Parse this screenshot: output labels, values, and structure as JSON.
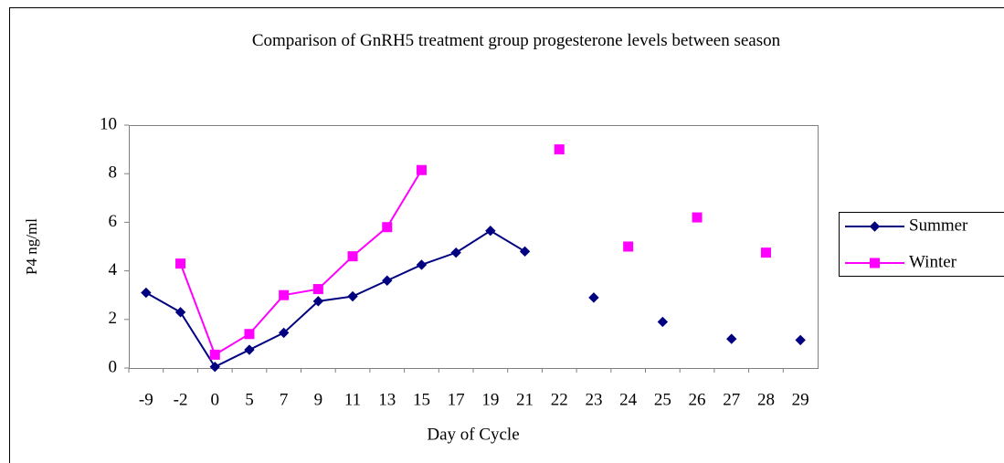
{
  "chart_data": {
    "type": "line",
    "title": "Comparison of GnRH5 treatment group progesterone levels between season",
    "x_label": "Day of Cycle",
    "y_label": "P4 ng/ml",
    "categories": [
      "-9",
      "-2",
      "0",
      "5",
      "7",
      "9",
      "11",
      "13",
      "15",
      "17",
      "19",
      "21",
      "22",
      "23",
      "24",
      "25",
      "26",
      "27",
      "28",
      "29"
    ],
    "series": [
      {
        "name": "Summer",
        "color": "#000080",
        "marker": "diamond",
        "values": [
          3.1,
          2.3,
          0.05,
          0.75,
          1.45,
          2.75,
          2.95,
          3.6,
          4.25,
          4.75,
          5.65,
          4.8,
          null,
          2.9,
          null,
          1.9,
          null,
          1.2,
          null,
          1.15
        ]
      },
      {
        "name": "Winter",
        "color": "#ff00ff",
        "marker": "square",
        "values": [
          null,
          4.3,
          0.55,
          1.4,
          3.0,
          3.25,
          4.6,
          5.8,
          8.15,
          null,
          null,
          null,
          9.0,
          null,
          5.0,
          null,
          6.2,
          null,
          4.75,
          null
        ]
      }
    ],
    "ylim": [
      0,
      10
    ],
    "yticks": [
      0,
      2,
      4,
      6,
      8,
      10
    ],
    "grid": false,
    "legend": "right"
  }
}
